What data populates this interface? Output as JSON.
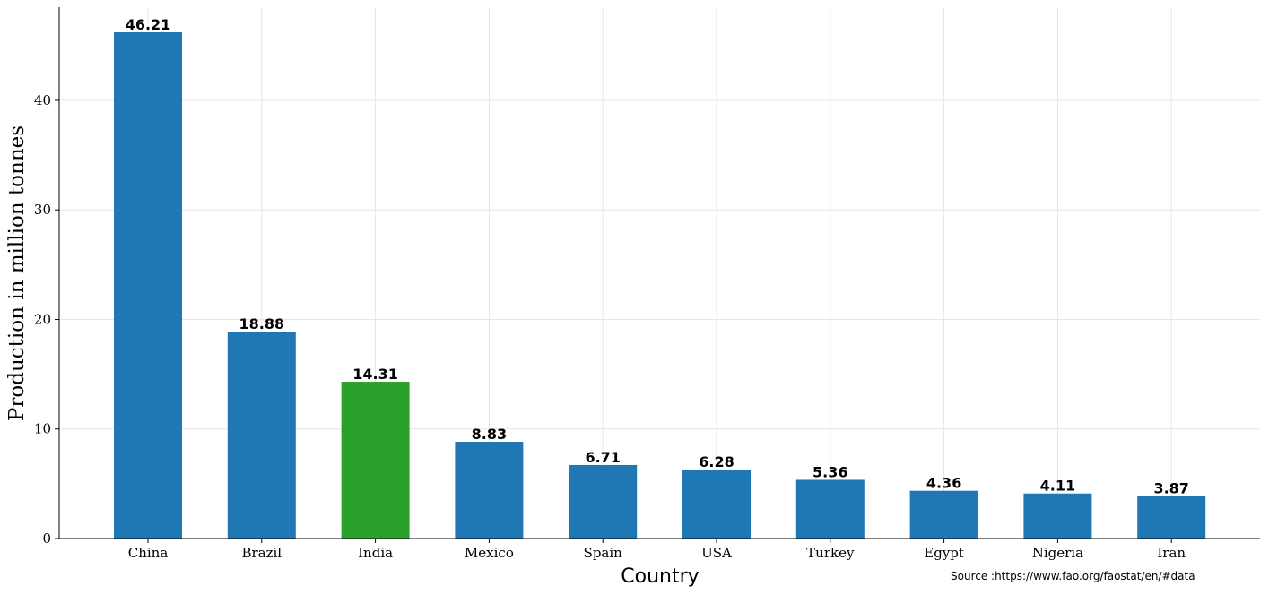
{
  "chart_data": {
    "type": "bar",
    "categories": [
      "China",
      "Brazil",
      "India",
      "Mexico",
      "Spain",
      "USA",
      "Turkey",
      "Egypt",
      "Nigeria",
      "Iran"
    ],
    "values": [
      46.21,
      18.88,
      14.31,
      8.83,
      6.71,
      6.28,
      5.36,
      4.36,
      4.11,
      3.87
    ],
    "value_labels": [
      "46.21",
      "18.88",
      "14.31",
      "8.83",
      "6.71",
      "6.28",
      "5.36",
      "4.36",
      "4.11",
      "3.87"
    ],
    "colors": [
      "#1f77b4",
      "#1f77b4",
      "#2ca02c",
      "#1f77b4",
      "#1f77b4",
      "#1f77b4",
      "#1f77b4",
      "#1f77b4",
      "#1f77b4",
      "#1f77b4"
    ],
    "xlabel": "Country",
    "ylabel": "Production in million tonnes",
    "ylim": [
      0,
      48.5
    ],
    "yticks": [
      0,
      10,
      20,
      30,
      40
    ],
    "grid": true,
    "annotation": "Source :https://www.fao.org/faostat/en/#data"
  }
}
